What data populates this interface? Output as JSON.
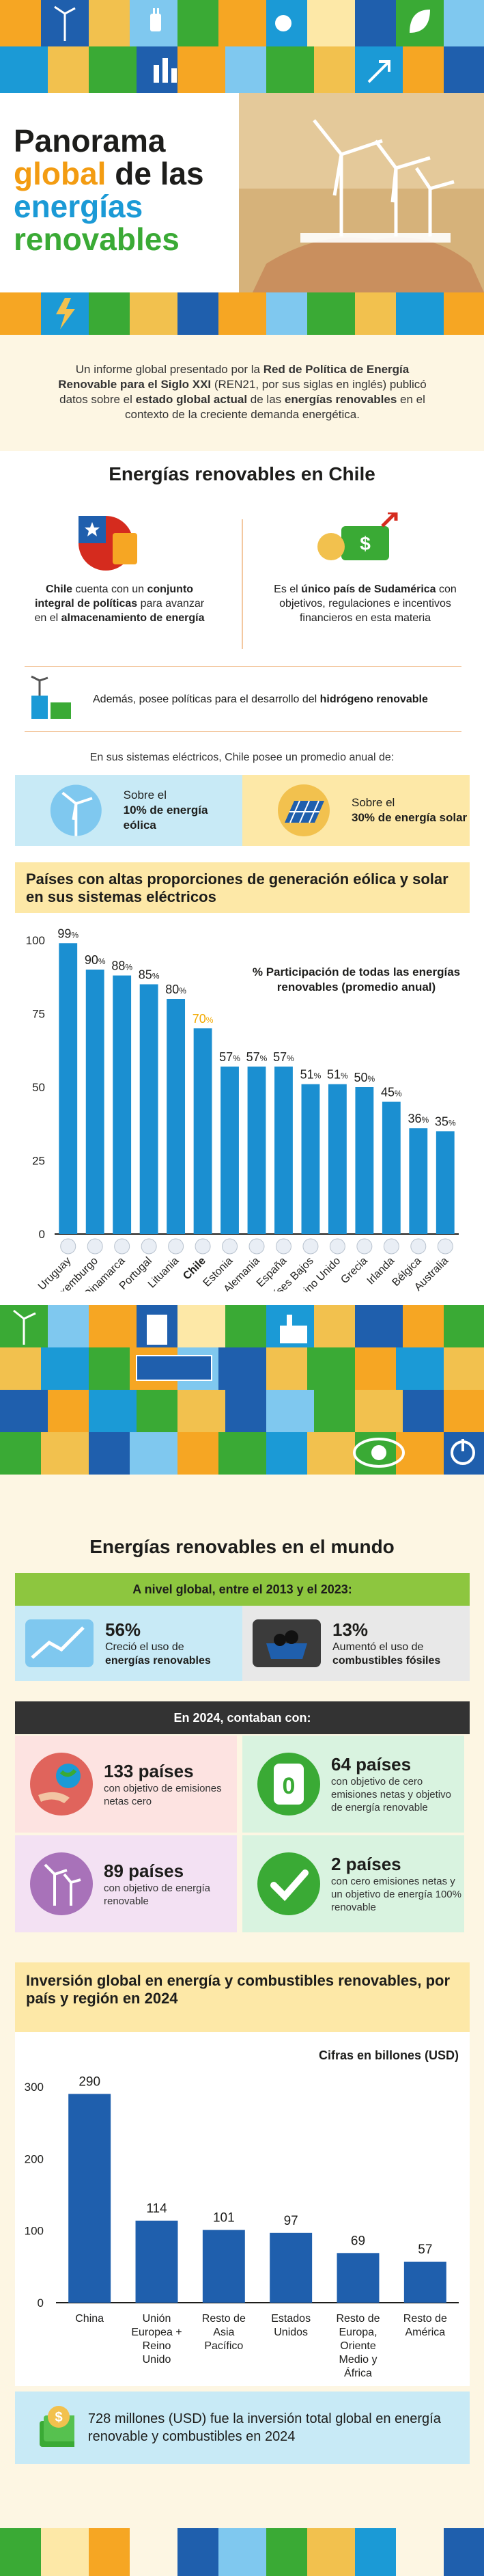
{
  "hero": {
    "title_line1": "Panorama",
    "title_word_global": "global",
    "title_word_de_las": " de las",
    "title_line3": "energías",
    "title_line4": "renovables"
  },
  "intro": {
    "text_a": "Un informe global presentado por la ",
    "text_b": "Red de Política de Energía Renovable para el Siglo XXI",
    "text_c": " (REN21, por sus siglas en inglés) publicó datos sobre el ",
    "text_d": "estado global actual",
    "text_e": " de las ",
    "text_f": "energías renovables",
    "text_g": " en el contexto de la creciente demanda energética."
  },
  "chile": {
    "title": "Energías renovables en Chile",
    "card_left": {
      "a": "Chile",
      "b": " cuenta con un ",
      "c": "conjunto integral de políticas",
      "d": " para avanzar en el ",
      "e": "almacenamiento de energía"
    },
    "card_right": {
      "a": "Es el ",
      "b": "único país de Sudamérica",
      "c": " con objetivos, regulaciones e incentivos financieros en esta materia"
    },
    "hydrogen": {
      "a": "Además, posee políticas para el desarrollo del ",
      "b": "hidrógeno renovable"
    },
    "avg_label": "En sus sistemas eléctricos, Chile posee un promedio anual de:",
    "wind": {
      "a": "Sobre el ",
      "b": "10% de energía eólica"
    },
    "solar": {
      "a": "Sobre el ",
      "b": "30% de energía solar"
    }
  },
  "chart1": {
    "heading": "Países con altas proporciones de generación eólica y solar en sus sistemas eléctricos",
    "legend": "% Participación de todas las energías renovables (promedio anual)",
    "bar_color": "#1b8fd1",
    "highlight_color": "#f2a900"
  },
  "chart_data": [
    {
      "type": "bar",
      "title": "",
      "legend": "% Participación de todas las energías renovables (promedio anual)",
      "categories": [
        "Uruguay",
        "Luxemburgo",
        "Dinamarca",
        "Portugal",
        "Lituania",
        "Chile",
        "Estonia",
        "Alemania",
        "España",
        "Países Bajos",
        "Reino Unido",
        "Grecia",
        "Irlanda",
        "Bélgica",
        "Australia"
      ],
      "values": [
        99,
        90,
        88,
        85,
        80,
        70,
        57,
        57,
        57,
        51,
        51,
        50,
        45,
        36,
        35
      ],
      "highlight": "Chile",
      "yticks": [
        0,
        25,
        50,
        75,
        100
      ],
      "ylim": [
        0,
        100
      ],
      "unit": "%"
    },
    {
      "type": "bar",
      "title": "Inversión global en energía y combustibles renovables, por país y región en 2024",
      "legend": "Cifras en billones (USD)",
      "categories": [
        "China",
        "Unión Europea + Reino Unido",
        "Resto de Asia Pacífico",
        "Estados Unidos",
        "Resto de Europa, Oriente Medio y África",
        "Resto de América"
      ],
      "values": [
        290,
        114,
        101,
        97,
        69,
        57
      ],
      "yticks": [
        0,
        100,
        200,
        300
      ],
      "ylim": [
        0,
        300
      ]
    }
  ],
  "world": {
    "title": "Energías renovables en el mundo",
    "strip1": "A nivel global, entre el 2013 y el 2023:",
    "stat_renew": {
      "num": "56%",
      "a": "Creció el uso de ",
      "b": "energías renovables"
    },
    "stat_fossil": {
      "num": "13%",
      "a": "Aumentó el uso de ",
      "b": "combustibles fósiles"
    },
    "strip2": "En 2024, contaban con:",
    "c1": {
      "num": "133 países",
      "desc": "con objetivo de emisiones netas cero"
    },
    "c2": {
      "num": "64 países",
      "desc": "con objetivo de cero emisiones netas y objetivo de energía renovable"
    },
    "c3": {
      "num": "89 países",
      "desc": "con objetivo de energía renovable"
    },
    "c4": {
      "num": "2 países",
      "desc": "con cero emisiones netas y un objetivo de energía 100% renovable"
    }
  },
  "chart2": {
    "heading": "Inversión global en energía y combustibles renovables, por país y región en 2024",
    "legend": "Cifras en billones (USD)",
    "bar_color": "#1f5fad"
  },
  "total": {
    "text": "728 millones (USD) fue la inversión total global en energía renovable y combustibles en 2024"
  },
  "colors": {
    "orange": "#f39c12",
    "blue": "#1b9ad6",
    "green": "#3aaa35",
    "yellow": "#fde8a7",
    "cream": "#fdf6e3"
  }
}
